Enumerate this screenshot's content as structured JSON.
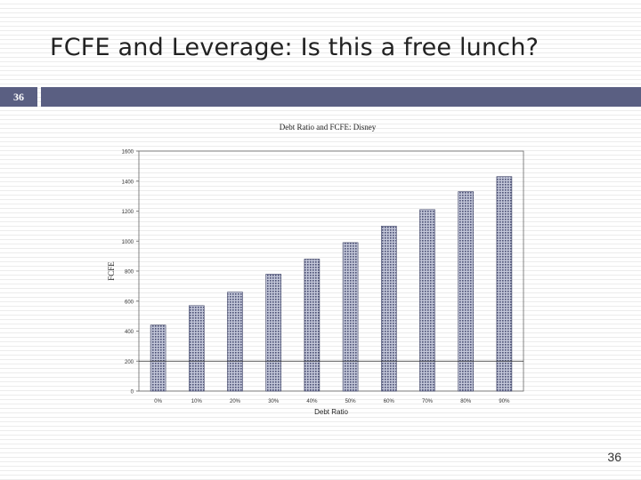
{
  "slide": {
    "title": "FCFE and Leverage: Is this a free lunch?",
    "section_number": "36",
    "page_number": "36",
    "colors": {
      "band": "#5a5f82",
      "bar": "#9aa0bc"
    }
  },
  "chart_data": {
    "type": "bar",
    "title": "Debt Ratio and FCFE: Disney",
    "xlabel": "Debt Ratio",
    "ylabel": "FCFE",
    "categories": [
      "0%",
      "10%",
      "20%",
      "30%",
      "40%",
      "50%",
      "60%",
      "70%",
      "80%",
      "90%"
    ],
    "values": [
      440,
      570,
      660,
      780,
      880,
      990,
      1100,
      1210,
      1330,
      1430
    ],
    "ylim": [
      0,
      1600
    ],
    "yticks": [
      0,
      200,
      400,
      600,
      800,
      1000,
      1200,
      1400,
      1600
    ],
    "ytick_labels": [
      "0",
      "200",
      "400",
      "600",
      "800",
      "1000",
      "1200",
      "1400",
      "1600"
    ],
    "reference_line": 200,
    "grid": false,
    "legend": "none"
  }
}
